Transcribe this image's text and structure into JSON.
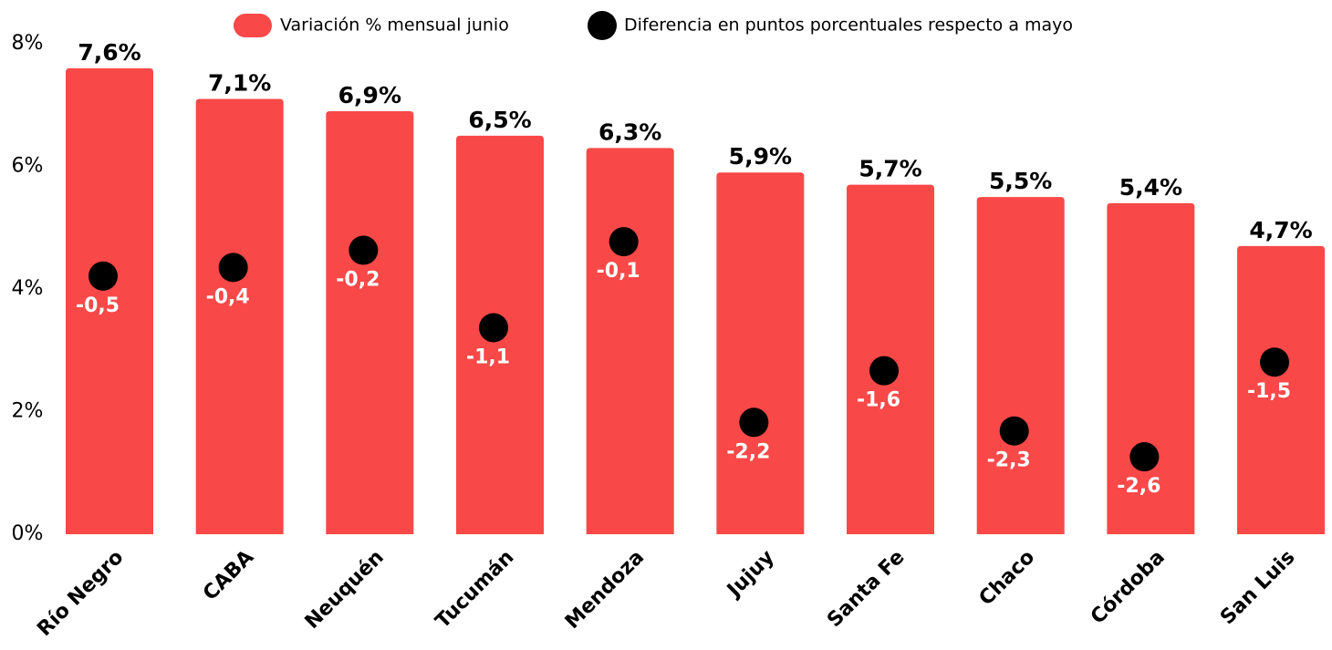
{
  "chart_data": {
    "type": "bar",
    "categories": [
      "Río Negro",
      "CABA",
      "Neuquén",
      "Tucumán",
      "Mendoza",
      "Jujuy",
      "Santa Fe",
      "Chaco",
      "Córdoba",
      "San Luis"
    ],
    "series": [
      {
        "name": "Variación % mensual junio",
        "color": "#f94848",
        "values": [
          7.6,
          7.1,
          6.9,
          6.5,
          6.3,
          5.9,
          5.7,
          5.5,
          5.4,
          4.7
        ],
        "value_labels": [
          "7,6%",
          "7,1%",
          "6,9%",
          "6,5%",
          "6,3%",
          "5,9%",
          "5,7%",
          "5,5%",
          "5,4%",
          "4,7%"
        ]
      },
      {
        "name": "Diferencia en puntos porcentuales respecto a mayo",
        "color": "#000000",
        "type": "scatter",
        "axis": "y2",
        "values": [
          -0.5,
          -0.4,
          -0.2,
          -1.1,
          -0.1,
          -2.2,
          -1.6,
          -2.3,
          -2.6,
          -1.5
        ],
        "value_labels": [
          "-0,5",
          "-0,4",
          "-0,2",
          "-1,1",
          "-0,1",
          "-2,2",
          "-1,6",
          "-2,3",
          "-2,6",
          "-1,5"
        ]
      }
    ],
    "ylim": [
      0,
      8
    ],
    "yticks": [
      {
        "value": 0,
        "label": "0%"
      },
      {
        "value": 2,
        "label": "2%"
      },
      {
        "value": 4,
        "label": "4%"
      },
      {
        "value": 6,
        "label": "6%"
      },
      {
        "value": 8,
        "label": "8%"
      }
    ],
    "y2lim": [
      -3.5,
      2.2
    ],
    "legend": "top"
  }
}
